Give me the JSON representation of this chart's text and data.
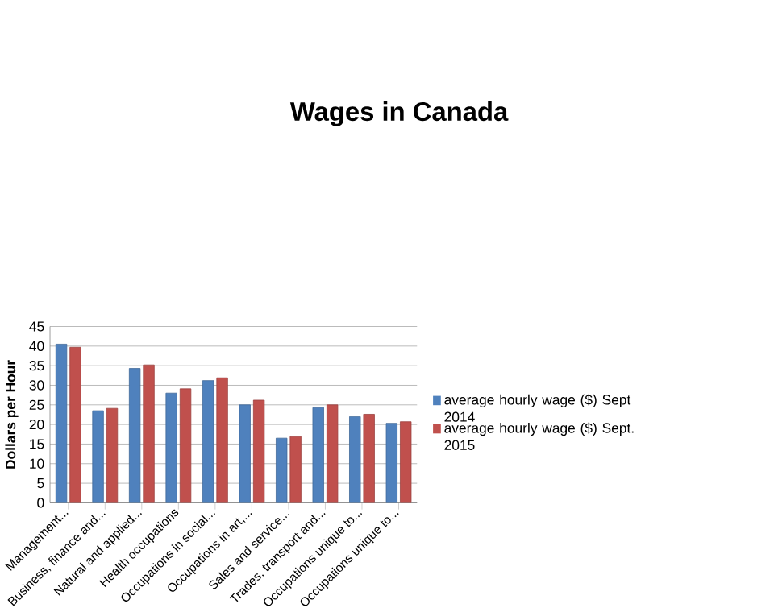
{
  "chart_data": {
    "type": "bar",
    "title": "Wages in Canada",
    "ylabel": "Dollars per Hour",
    "categories": [
      "Management...",
      "Business, finance and...",
      "Natural and applied...",
      "Health occupations",
      "Occupations in social...",
      "Occupations in art,...",
      "Sales and service...",
      "Trades, transport and...",
      "Occupations unique to...",
      "Occupations unique to..."
    ],
    "series": [
      {
        "name": "average hourly wage ($) Sept 2014",
        "color": "#4f81bd",
        "values": [
          40.5,
          23.5,
          34.3,
          28,
          31.2,
          25,
          16.5,
          24.3,
          22,
          20.3
        ]
      },
      {
        "name": "average hourly wage ($) Sept. 2015",
        "color": "#c0504d",
        "values": [
          39.7,
          24.1,
          35.2,
          29.1,
          31.9,
          26.2,
          16.9,
          25,
          22.6,
          20.7
        ]
      }
    ],
    "ylim": [
      0,
      45
    ],
    "yticks": [
      0,
      5,
      10,
      15,
      20,
      25,
      30,
      35,
      40,
      45
    ],
    "grid": "y",
    "legend": "right"
  }
}
